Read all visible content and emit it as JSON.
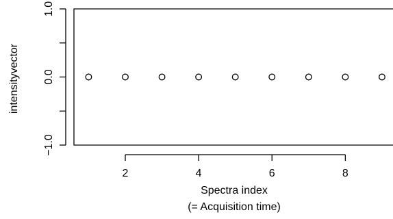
{
  "chart_data": {
    "type": "scatter",
    "xlabel": "Spectra index",
    "xlabel_sub": "(= Acquisition time)",
    "ylabel": "intensityvector",
    "xlim": [
      0.6,
      9.3
    ],
    "ylim": [
      -1.0,
      1.0
    ],
    "x_ticks": [
      2,
      4,
      6,
      8
    ],
    "x_tick_labels": [
      "2",
      "4",
      "6",
      "8"
    ],
    "y_ticks": [
      -1.0,
      -0.5,
      0.0,
      0.5,
      1.0
    ],
    "y_tick_labels": [
      "−1.0",
      "",
      "0.0",
      "",
      "1.0"
    ],
    "points": [
      {
        "x": 1,
        "y": 0.0
      },
      {
        "x": 2,
        "y": 0.0
      },
      {
        "x": 3,
        "y": 0.0
      },
      {
        "x": 4,
        "y": 0.0
      },
      {
        "x": 5,
        "y": 0.0
      },
      {
        "x": 6,
        "y": 0.0
      },
      {
        "x": 7,
        "y": 0.0
      },
      {
        "x": 8,
        "y": 0.0
      },
      {
        "x": 9,
        "y": 0.0
      }
    ],
    "marker": "open-circle",
    "grid": false,
    "legend": "none"
  }
}
